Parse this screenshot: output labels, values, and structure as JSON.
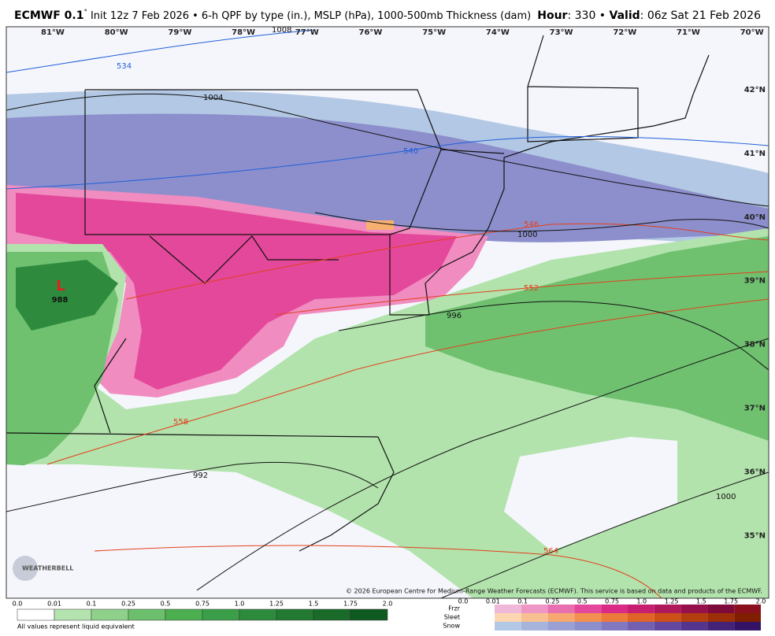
{
  "header": {
    "model": "ECMWF 0.1",
    "degree": "°",
    "description": "Init 12z 7 Feb 2026 • 6-h QPF by type (in.), MSLP (hPa), 1000-500mb Thickness (dam)",
    "hour_label": "Hour",
    "hour": "330",
    "valid_label": "Valid",
    "valid": "06z Sat 21 Feb 2026"
  },
  "map": {
    "longitudes": [
      "81°W",
      "80°W",
      "79°W",
      "78°W",
      "77°W",
      "76°W",
      "75°W",
      "74°W",
      "73°W",
      "72°W",
      "71°W",
      "70°W"
    ],
    "latitudes": [
      "42°N",
      "41°N",
      "40°N",
      "39°N",
      "38°N",
      "37°N",
      "36°N",
      "35°N"
    ],
    "thickness_labels": [
      "534",
      "540",
      "546",
      "552",
      "558",
      "564"
    ],
    "pressure_labels": [
      "1008",
      "1004",
      "1000",
      "996",
      "992",
      "1000"
    ],
    "low": {
      "symbol": "L",
      "pressure": "988"
    },
    "copyright": "© 2026 European Centre for Medium-Range Weather Forecasts (ECMWF). This service is based on data and products of the ECMWF.",
    "brand": "WEATHERBELL"
  },
  "legend": {
    "rain_ticks": [
      "0.0",
      "0.01",
      "0.1",
      "0.25",
      "0.5",
      "0.75",
      "1.0",
      "1.25",
      "1.5",
      "1.75",
      "2.0"
    ],
    "note": "All values represent liquid equivalent",
    "types": [
      "Frzr",
      "Sleet",
      "Snow"
    ],
    "type_ticks": [
      "0.0",
      "0.01",
      "0.1",
      "0.25",
      "0.5",
      "0.75",
      "1.0",
      "1.25",
      "1.5",
      "1.75",
      "2.0"
    ]
  }
}
